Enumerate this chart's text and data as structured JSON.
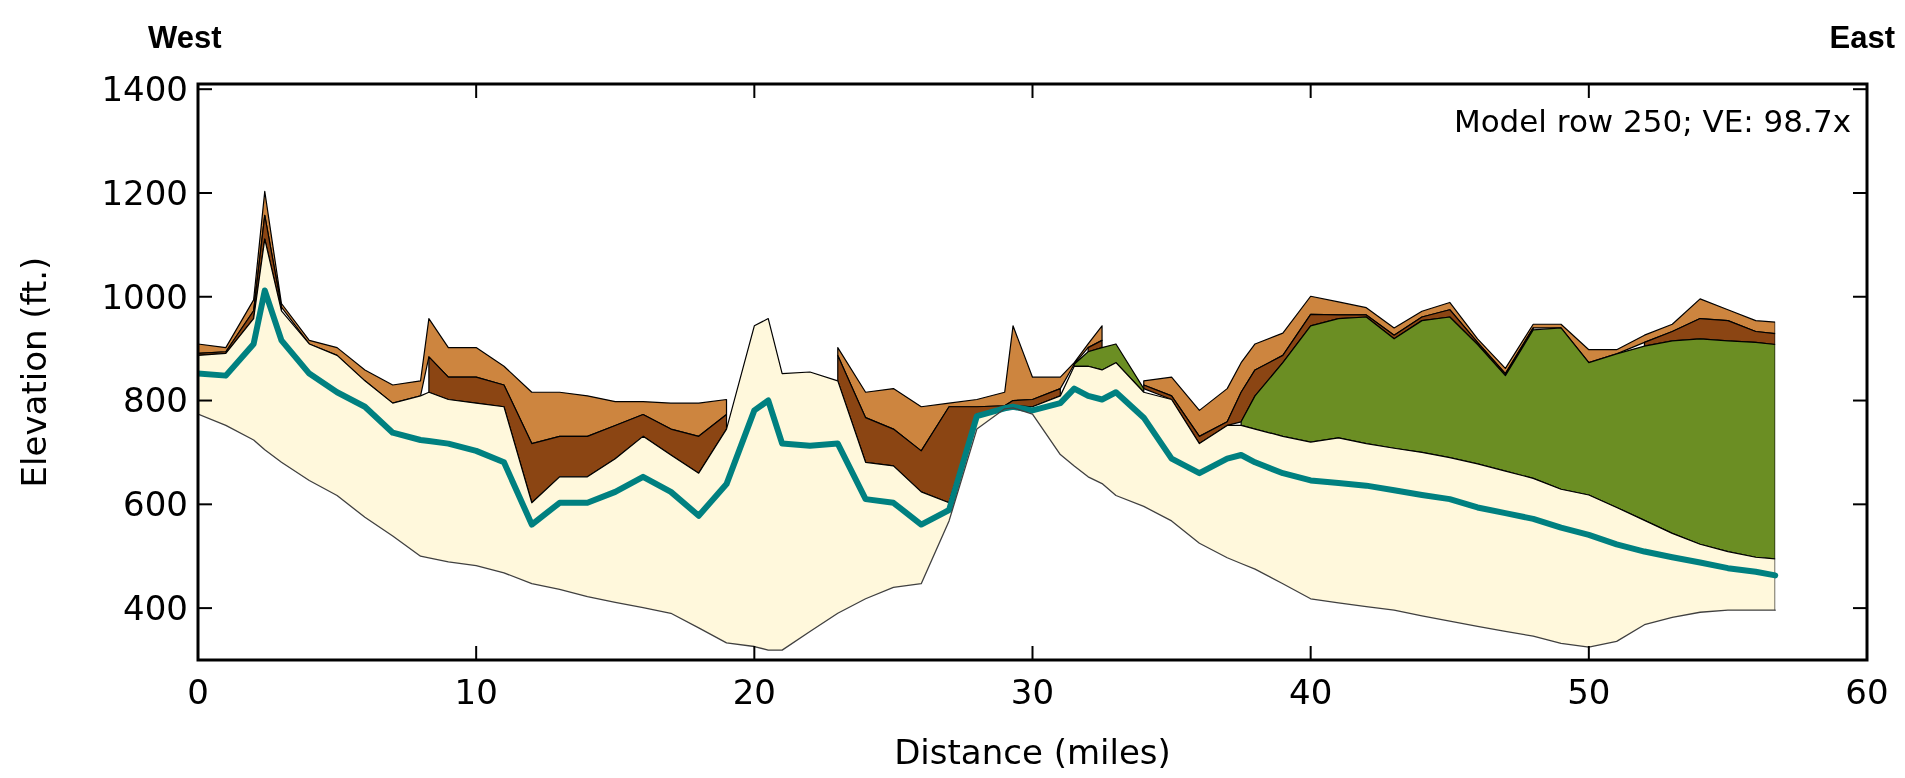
{
  "chart_data": {
    "type": "area",
    "xlabel": "Distance (miles)",
    "ylabel": "Elevation (ft.)",
    "annotations": [
      "West",
      "East",
      "Model row 250; VE: 98.7x"
    ],
    "xlim": [
      0,
      60
    ],
    "xticks": [
      0,
      10,
      20,
      30,
      40,
      50,
      60
    ],
    "ylim": [
      300,
      1410
    ],
    "yticks": [
      400,
      600,
      800,
      1000,
      1200,
      1400
    ],
    "grid": false,
    "legend": false,
    "x": [
      0,
      1,
      2,
      2.4,
      3,
      4,
      5,
      6,
      7,
      8,
      8.3,
      9,
      10,
      11,
      12,
      13,
      14,
      15,
      16,
      17,
      18,
      19,
      20,
      20.5,
      21,
      22,
      23,
      24,
      25,
      26,
      27,
      28,
      29,
      29.3,
      30,
      31,
      31.5,
      32,
      32.5,
      33,
      34,
      35,
      36,
      37,
      37.5,
      38,
      39,
      40,
      41,
      42,
      43,
      44,
      45,
      46,
      47,
      48,
      49,
      50,
      51,
      52,
      53,
      54,
      55,
      56,
      56.7
    ],
    "series": [
      {
        "color": "#cd853f",
        "values": [
          909,
          902,
          994,
          1203,
          987,
          916,
          902,
          859,
          830,
          838,
          958,
          902,
          902,
          866,
          816,
          816,
          809,
          798,
          798,
          795,
          795,
          802,
          null,
          null,
          null,
          null,
          902,
          816,
          823,
          788,
          795,
          802,
          816,
          944,
          845,
          845,
          873,
          909,
          944,
          null,
          838,
          845,
          781,
          823,
          873,
          909,
          930,
          1001,
          990,
          979,
          940,
          972,
          989,
          919,
          862,
          947,
          947,
          898,
          898,
          926,
          947,
          996,
          975,
          954,
          951
        ]
      },
      {
        "color": "#8b4513",
        "values": [
          891,
          894,
          973,
          1157,
          980,
          null,
          null,
          null,
          null,
          null,
          884,
          845,
          845,
          830,
          717,
          731,
          731,
          752,
          773,
          745,
          731,
          773,
          null,
          null,
          null,
          null,
          887,
          767,
          745,
          703,
          788,
          788,
          790,
          800,
          802,
          823,
          null,
          902,
          916,
          null,
          830,
          809,
          731,
          759,
          816,
          859,
          887,
          966,
          965,
          965,
          926,
          961,
          975,
          912,
          852,
          940,
          null,
          null,
          null,
          912,
          933,
          958,
          954,
          933,
          929
        ]
      },
      {
        "color": "#6b8e23",
        "values": [
          null,
          null,
          null,
          null,
          null,
          null,
          null,
          null,
          null,
          null,
          null,
          null,
          null,
          null,
          null,
          null,
          null,
          null,
          null,
          null,
          null,
          null,
          null,
          null,
          null,
          null,
          null,
          null,
          null,
          null,
          null,
          null,
          null,
          null,
          null,
          null,
          870,
          894,
          902,
          909,
          823,
          null,
          null,
          null,
          759,
          809,
          873,
          944,
          958,
          961,
          919,
          954,
          961,
          908,
          848,
          936,
          940,
          873,
          890,
          905,
          915,
          919,
          915,
          912,
          908
        ]
      },
      {
        "color": "#fff8dc",
        "values": [
          887,
          891,
          958,
          1111,
          973,
          909,
          887,
          838,
          795,
          809,
          816,
          802,
          795,
          788,
          603,
          653,
          653,
          688,
          731,
          695,
          660,
          745,
          944,
          958,
          852,
          855,
          838,
          681,
          674,
          624,
          603,
          774,
          785,
          790,
          788,
          809,
          866,
          866,
          859,
          873,
          816,
          802,
          717,
          752,
          752,
          745,
          731,
          720,
          728,
          717,
          708,
          700,
          690,
          678,
          664,
          650,
          629,
          618,
          594,
          569,
          544,
          523,
          509,
          498,
          495
        ]
      },
      {
        "type": "line",
        "color": "#008080",
        "values": [
          852,
          848,
          909,
          1012,
          916,
          852,
          816,
          788,
          738,
          724,
          722,
          717,
          703,
          681,
          561,
          603,
          603,
          624,
          653,
          624,
          578,
          639,
          781,
          800,
          717,
          713,
          717,
          610,
          603,
          561,
          589,
          770,
          785,
          788,
          781,
          795,
          823,
          809,
          802,
          816,
          767,
          688,
          660,
          688,
          695,
          681,
          660,
          646,
          641,
          636,
          627,
          618,
          610,
          594,
          583,
          572,
          555,
          541,
          523,
          509,
          498,
          488,
          477,
          470,
          463
        ]
      },
      {
        "type": "line",
        "color": "#404040",
        "values": [
          774,
          752,
          724,
          705,
          681,
          646,
          617,
          575,
          539,
          500,
          497,
          489,
          482,
          468,
          447,
          436,
          422,
          411,
          401,
          390,
          362,
          333,
          326,
          319,
          319,
          355,
          390,
          418,
          440,
          447,
          568,
          745,
          784,
          786,
          774,
          696,
          674,
          653,
          640,
          617,
          596,
          568,
          525,
          497,
          486,
          475,
          447,
          418,
          410,
          403,
          396,
          385,
          375,
          365,
          355,
          346,
          332,
          325,
          336,
          368,
          382,
          392,
          396,
          396,
          396
        ]
      }
    ]
  }
}
